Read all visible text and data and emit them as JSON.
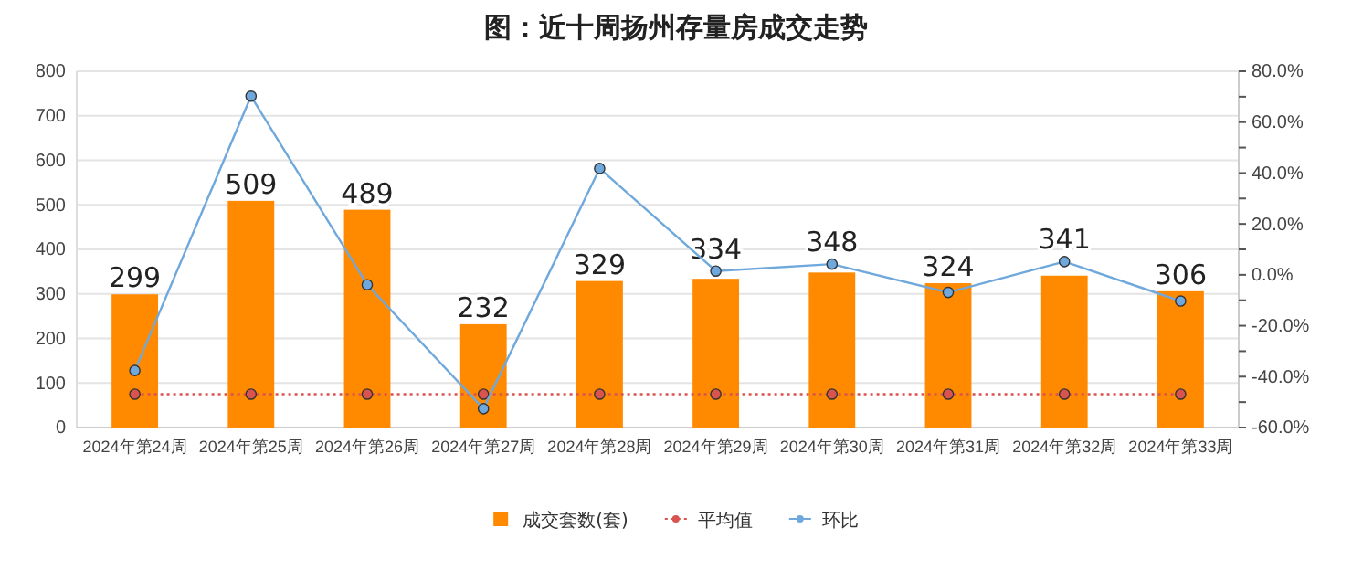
{
  "chart_data": {
    "type": "bar",
    "title": "图：近十周扬州存量房成交走势",
    "categories": [
      "2024年第24周",
      "2024年第25周",
      "2024年第26周",
      "2024年第27周",
      "2024年第28周",
      "2024年第29周",
      "2024年第30周",
      "2024年第31周",
      "2024年第32周",
      "2024年第33周"
    ],
    "series": [
      {
        "name": "成交套数(套)",
        "color": "#ff8a00",
        "values": [
          299,
          509,
          489,
          232,
          329,
          334,
          348,
          324,
          341,
          306
        ],
        "value_labels": [
          "299",
          "509",
          "489",
          "232",
          "329",
          "334",
          "348",
          "324",
          "341",
          "306"
        ]
      },
      {
        "name": "平均值",
        "type": "line",
        "color": "#d9534f",
        "line_style": "dotted",
        "marker": "circle",
        "values": [
          75,
          75,
          75,
          75,
          75,
          75,
          75,
          75,
          75,
          75
        ]
      },
      {
        "name": "环比",
        "type": "line",
        "axis": "y2",
        "color": "#6fa8dc",
        "line_style": "solid",
        "marker": "circle",
        "values": [
          -37.6,
          70.2,
          -3.9,
          -52.6,
          41.8,
          1.5,
          4.2,
          -6.9,
          5.2,
          -10.3
        ]
      }
    ],
    "ylim": [
      0,
      800
    ],
    "yticks": [
      0,
      100,
      200,
      300,
      400,
      500,
      600,
      700,
      800
    ],
    "y2lim": [
      -60,
      80
    ],
    "y2ticks": [
      {
        "value": -60,
        "label": "-60.0%"
      },
      {
        "value": -50,
        "label": null
      },
      {
        "value": -40,
        "label": "-40.0%"
      },
      {
        "value": -30,
        "label": null
      },
      {
        "value": -20,
        "label": "-20.0%"
      },
      {
        "value": -10,
        "label": null
      },
      {
        "value": 0,
        "label": "0.0%"
      },
      {
        "value": 10,
        "label": null
      },
      {
        "value": 20,
        "label": "20.0%"
      },
      {
        "value": 30,
        "label": null
      },
      {
        "value": 40,
        "label": "40.0%"
      },
      {
        "value": 50,
        "label": null
      },
      {
        "value": 60,
        "label": "60.0%"
      },
      {
        "value": 70,
        "label": null
      },
      {
        "value": 80,
        "label": "80.0%"
      }
    ],
    "grid": "y",
    "legend": "bottom"
  }
}
